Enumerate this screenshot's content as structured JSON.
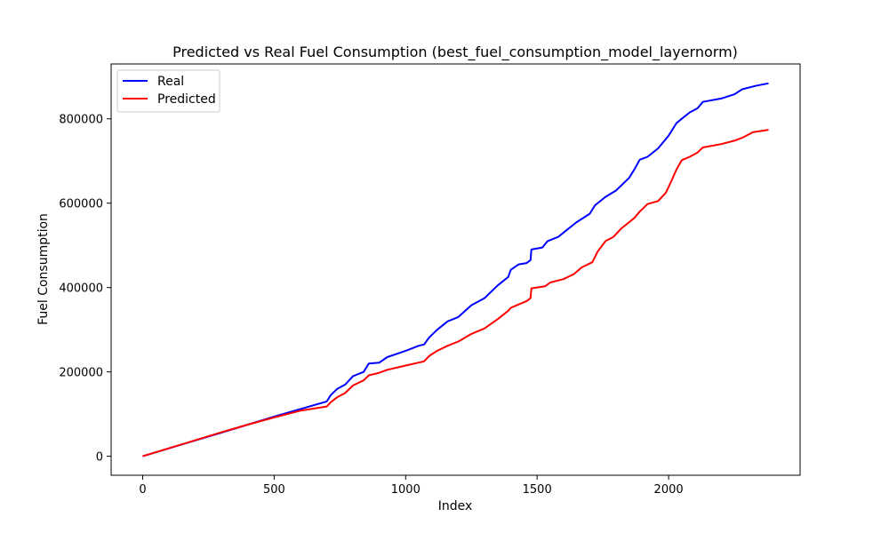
{
  "chart_data": {
    "type": "line",
    "title": "Predicted vs Real Fuel Consumption (best_fuel_consumption_model_layernorm)",
    "xlabel": "Index",
    "ylabel": "Fuel Consumption",
    "xlim": [
      -120,
      2500
    ],
    "ylim": [
      -45000,
      930000
    ],
    "xticks": [
      0,
      500,
      1000,
      1500,
      2000
    ],
    "yticks": [
      0,
      200000,
      400000,
      600000,
      800000
    ],
    "grid": false,
    "legend_position": "top-left",
    "series": [
      {
        "name": "Real",
        "color": "#0000ff",
        "points": [
          [
            0,
            0
          ],
          [
            100,
            18800
          ],
          [
            200,
            37500
          ],
          [
            300,
            56000
          ],
          [
            400,
            75000
          ],
          [
            500,
            94000
          ],
          [
            600,
            112000
          ],
          [
            700,
            130000
          ],
          [
            715,
            145000
          ],
          [
            740,
            160000
          ],
          [
            770,
            170000
          ],
          [
            800,
            190000
          ],
          [
            840,
            200000
          ],
          [
            860,
            220000
          ],
          [
            900,
            222000
          ],
          [
            930,
            235000
          ],
          [
            1000,
            250000
          ],
          [
            1050,
            262000
          ],
          [
            1070,
            265000
          ],
          [
            1090,
            282000
          ],
          [
            1120,
            300000
          ],
          [
            1160,
            320000
          ],
          [
            1200,
            330000
          ],
          [
            1250,
            358000
          ],
          [
            1300,
            375000
          ],
          [
            1350,
            405000
          ],
          [
            1390,
            425000
          ],
          [
            1400,
            442000
          ],
          [
            1430,
            455000
          ],
          [
            1460,
            458000
          ],
          [
            1475,
            465000
          ],
          [
            1478,
            490000
          ],
          [
            1520,
            495000
          ],
          [
            1540,
            510000
          ],
          [
            1580,
            520000
          ],
          [
            1620,
            540000
          ],
          [
            1650,
            555000
          ],
          [
            1700,
            575000
          ],
          [
            1720,
            595000
          ],
          [
            1760,
            615000
          ],
          [
            1800,
            630000
          ],
          [
            1850,
            660000
          ],
          [
            1870,
            680000
          ],
          [
            1890,
            703000
          ],
          [
            1920,
            710000
          ],
          [
            1960,
            730000
          ],
          [
            2000,
            760000
          ],
          [
            2030,
            790000
          ],
          [
            2050,
            800000
          ],
          [
            2080,
            815000
          ],
          [
            2110,
            825000
          ],
          [
            2130,
            840000
          ],
          [
            2200,
            848000
          ],
          [
            2250,
            858000
          ],
          [
            2280,
            870000
          ],
          [
            2330,
            878000
          ],
          [
            2380,
            884000
          ]
        ]
      },
      {
        "name": "Predicted",
        "color": "#ff0000",
        "points": [
          [
            0,
            0
          ],
          [
            100,
            19000
          ],
          [
            200,
            38000
          ],
          [
            300,
            57000
          ],
          [
            400,
            75000
          ],
          [
            500,
            92000
          ],
          [
            600,
            108000
          ],
          [
            700,
            118000
          ],
          [
            715,
            128000
          ],
          [
            740,
            140000
          ],
          [
            770,
            150000
          ],
          [
            800,
            168000
          ],
          [
            840,
            180000
          ],
          [
            860,
            192000
          ],
          [
            900,
            198000
          ],
          [
            930,
            205000
          ],
          [
            1000,
            215000
          ],
          [
            1070,
            225000
          ],
          [
            1090,
            238000
          ],
          [
            1120,
            250000
          ],
          [
            1160,
            262000
          ],
          [
            1200,
            272000
          ],
          [
            1250,
            290000
          ],
          [
            1300,
            303000
          ],
          [
            1350,
            325000
          ],
          [
            1390,
            345000
          ],
          [
            1400,
            352000
          ],
          [
            1430,
            360000
          ],
          [
            1460,
            368000
          ],
          [
            1475,
            375000
          ],
          [
            1478,
            398000
          ],
          [
            1530,
            403000
          ],
          [
            1550,
            412000
          ],
          [
            1600,
            420000
          ],
          [
            1640,
            432000
          ],
          [
            1670,
            448000
          ],
          [
            1710,
            460000
          ],
          [
            1730,
            485000
          ],
          [
            1760,
            510000
          ],
          [
            1790,
            520000
          ],
          [
            1820,
            540000
          ],
          [
            1850,
            555000
          ],
          [
            1870,
            565000
          ],
          [
            1890,
            580000
          ],
          [
            1920,
            598000
          ],
          [
            1960,
            605000
          ],
          [
            1990,
            625000
          ],
          [
            2010,
            652000
          ],
          [
            2030,
            680000
          ],
          [
            2050,
            702000
          ],
          [
            2080,
            710000
          ],
          [
            2110,
            720000
          ],
          [
            2130,
            732000
          ],
          [
            2200,
            740000
          ],
          [
            2250,
            748000
          ],
          [
            2280,
            755000
          ],
          [
            2320,
            768000
          ],
          [
            2380,
            774000
          ]
        ]
      }
    ]
  }
}
